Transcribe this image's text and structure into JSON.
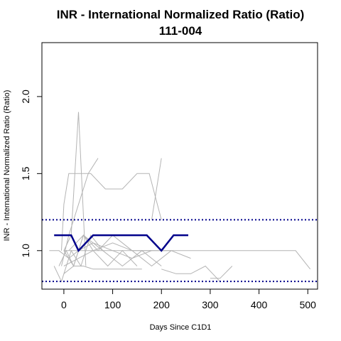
{
  "chart_data": {
    "type": "line",
    "title": "INR - International Normalized Ratio (Ratio)",
    "subtitle": "111-004",
    "xlabel": "Days Since C1D1",
    "ylabel": "INR - International Normalized Ratio (Ratio)",
    "xlim": [
      -45,
      520
    ],
    "ylim": [
      0.75,
      2.35
    ],
    "x_ticks": [
      0,
      100,
      200,
      300,
      400,
      500
    ],
    "y_ticks": [
      1.0,
      1.5,
      2.0
    ],
    "y_tick_labels": [
      "1.0",
      "1.5",
      "2.0"
    ],
    "reference_lines": [
      {
        "y": 1.2,
        "style": "dotted",
        "color": "#00008B"
      },
      {
        "y": 0.8,
        "style": "dotted",
        "color": "#00008B"
      }
    ],
    "colors": {
      "background_series": "#b4b4b4",
      "highlight_series": "#00008B",
      "reference": "#00008B"
    },
    "background_series": [
      {
        "x": [
          -5,
          0,
          10,
          25,
          55,
          85,
          120,
          150,
          175,
          200
        ],
        "y": [
          1.0,
          1.3,
          1.5,
          1.5,
          1.5,
          1.4,
          1.4,
          1.5,
          1.5,
          1.2
        ]
      },
      {
        "x": [
          0,
          15,
          30,
          45
        ],
        "y": [
          1.0,
          1.1,
          1.9,
          0.9
        ]
      },
      {
        "x": [
          -5,
          10,
          30,
          50,
          70
        ],
        "y": [
          0.9,
          1.1,
          1.3,
          1.5,
          1.6
        ]
      },
      {
        "x": [
          180,
          200
        ],
        "y": [
          1.2,
          1.6
        ]
      },
      {
        "x": [
          -10,
          5,
          20,
          40,
          60,
          90,
          120,
          150
        ],
        "y": [
          0.9,
          1.0,
          0.9,
          1.1,
          1.0,
          0.9,
          1.0,
          0.9
        ]
      },
      {
        "x": [
          -20,
          -5,
          15,
          35,
          55,
          80
        ],
        "y": [
          0.9,
          0.8,
          1.0,
          0.9,
          1.1,
          1.0
        ]
      },
      {
        "x": [
          0,
          20,
          40,
          70,
          100,
          140,
          180,
          220
        ],
        "y": [
          1.0,
          0.9,
          1.1,
          1.0,
          1.1,
          1.0,
          0.9,
          1.0
        ]
      },
      {
        "x": [
          0,
          100,
          200,
          300,
          400,
          475,
          505
        ],
        "y": [
          1.0,
          1.0,
          1.0,
          1.0,
          1.0,
          1.0,
          0.88
        ]
      },
      {
        "x": [
          -30,
          -10,
          10,
          30,
          60,
          100,
          140,
          180,
          220,
          260
        ],
        "y": [
          1.0,
          1.0,
          0.95,
          1.0,
          1.05,
          1.0,
          0.95,
          1.0,
          1.0,
          0.95
        ]
      },
      {
        "x": [
          0,
          20,
          40,
          60,
          90,
          120,
          160
        ],
        "y": [
          0.85,
          0.9,
          0.9,
          0.88,
          0.88,
          0.88,
          0.88
        ]
      },
      {
        "x": [
          10,
          40,
          80,
          120,
          160,
          200
        ],
        "y": [
          1.0,
          1.1,
          1.0,
          0.9,
          1.0,
          0.9
        ]
      },
      {
        "x": [
          200,
          230,
          260,
          290,
          320
        ],
        "y": [
          0.88,
          0.85,
          0.85,
          0.9,
          0.8
        ]
      },
      {
        "x": [
          300,
          320,
          345
        ],
        "y": [
          0.82,
          0.82,
          0.9
        ]
      },
      {
        "x": [
          0,
          30,
          60,
          100,
          140,
          180
        ],
        "y": [
          0.9,
          0.95,
          1.0,
          1.05,
          1.0,
          1.0
        ]
      }
    ],
    "highlight_series": {
      "name": "111-004",
      "x": [
        -20,
        15,
        30,
        60,
        100,
        170,
        200,
        225,
        255
      ],
      "y": [
        1.1,
        1.1,
        1.0,
        1.1,
        1.1,
        1.1,
        1.0,
        1.1,
        1.1
      ]
    }
  }
}
